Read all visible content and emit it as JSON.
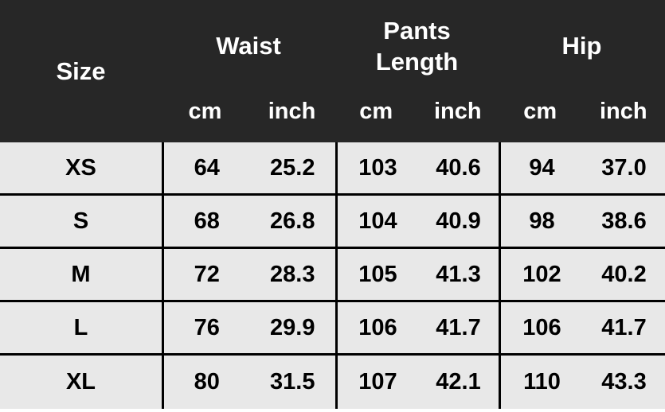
{
  "chart_data": {
    "type": "table",
    "column_groups": [
      {
        "label": "Size",
        "units": []
      },
      {
        "label": "Waist",
        "units": [
          "cm",
          "inch"
        ]
      },
      {
        "label": "Pants Length",
        "units": [
          "cm",
          "inch"
        ]
      },
      {
        "label": "Hip",
        "units": [
          "cm",
          "inch"
        ]
      }
    ],
    "rows": [
      {
        "size": "XS",
        "values": [
          "64",
          "25.2",
          "103",
          "40.6",
          "94",
          "37.0"
        ]
      },
      {
        "size": "S",
        "values": [
          "68",
          "26.8",
          "104",
          "40.9",
          "98",
          "38.6"
        ]
      },
      {
        "size": "M",
        "values": [
          "72",
          "28.3",
          "105",
          "41.3",
          "102",
          "40.2"
        ]
      },
      {
        "size": "L",
        "values": [
          "76",
          "29.9",
          "106",
          "41.7",
          "106",
          "41.7"
        ]
      },
      {
        "size": "XL",
        "values": [
          "80",
          "31.5",
          "107",
          "42.1",
          "110",
          "43.3"
        ]
      }
    ]
  },
  "colors": {
    "header_bg": "#272727",
    "header_text": "#ffffff",
    "row_bg": "#e8e8e8",
    "grid_line": "#000000",
    "cell_text": "#000000"
  }
}
